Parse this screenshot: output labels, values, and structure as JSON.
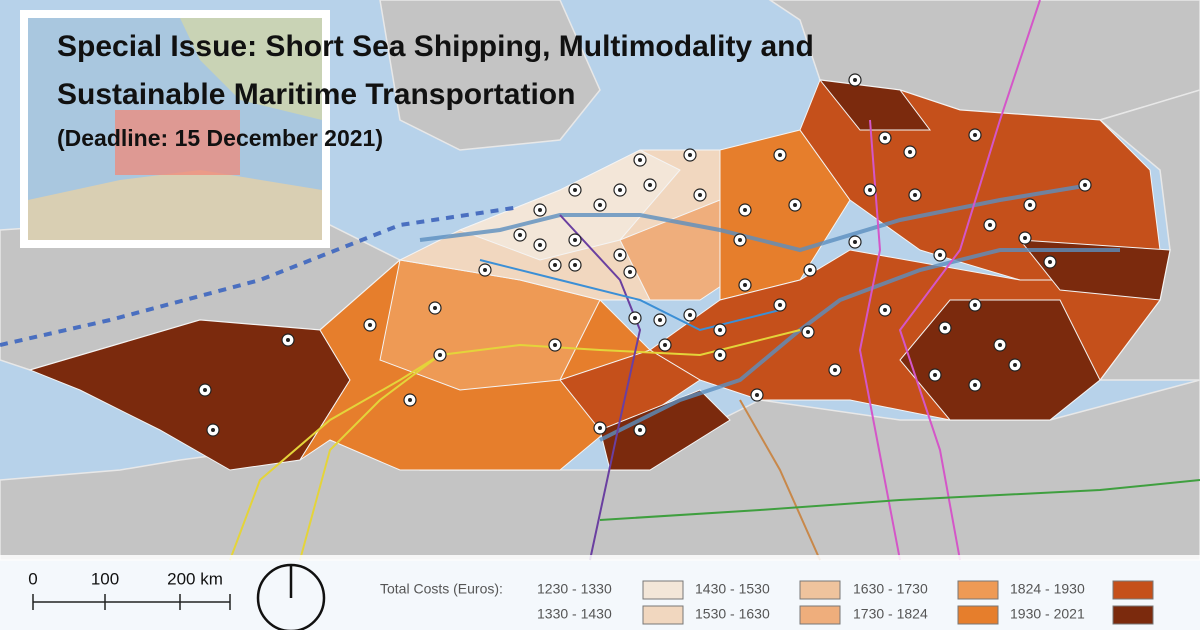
{
  "header": {
    "title_lines": [
      "Special Issue: Short Sea Shipping, Multimodality and",
      "Sustainable Maritime Transportation"
    ],
    "deadline": "(Deadline:  15 December 2021)"
  },
  "scale_bar": {
    "labels": [
      "0",
      "100",
      "200 km"
    ]
  },
  "legend": {
    "title": "Total Costs (Euros):",
    "items": [
      {
        "label": "1230 - 1330",
        "color": "#f3e6d8"
      },
      {
        "label": "1330 - 1430",
        "color": "#f1d7bf"
      },
      {
        "label": "1430 - 1530",
        "color": "#efc39d"
      },
      {
        "label": "1530 - 1630",
        "color": "#efae7c"
      },
      {
        "label": "1630 - 1730",
        "color": "#ee9a55"
      },
      {
        "label": "1730 - 1824",
        "color": "#e67e2c"
      },
      {
        "label": "1824 - 1930",
        "color": "#c5501b"
      },
      {
        "label": "1930 - 2021",
        "color": "#7b2a0d"
      }
    ]
  }
}
